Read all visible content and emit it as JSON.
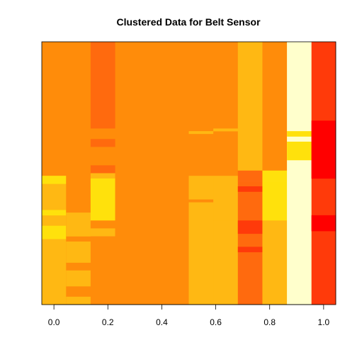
{
  "chart_data": {
    "type": "heatmap",
    "title": "Clustered Data for Belt Sensor",
    "xlabel": "",
    "ylabel": "",
    "xlim": [
      -0.045,
      1.045
    ],
    "ylim": [
      0,
      1
    ],
    "x_ticks": [
      0.0,
      0.2,
      0.4,
      0.6,
      0.8,
      1.0
    ],
    "x_tick_labels": [
      "0.0",
      "0.2",
      "0.4",
      "0.6",
      "0.8",
      "1.0"
    ],
    "y_axis_visible": false,
    "grid": false,
    "legend": "none",
    "palette": [
      "#FF0000",
      "#FF3A0A",
      "#FF6A0E",
      "#FF8C0A",
      "#FFB813",
      "#FFE10C",
      "#FFFFCC"
    ],
    "columns": [
      {
        "x_start": -0.045,
        "x_end": 0.045,
        "base_level": 3,
        "bands": [
          [
            0.0,
            0.51,
            3
          ],
          [
            0.51,
            1.0,
            4
          ],
          [
            0.51,
            0.54,
            5
          ],
          [
            0.7,
            0.75,
            5
          ],
          [
            0.64,
            0.66,
            5
          ]
        ]
      },
      {
        "x_start": 0.045,
        "x_end": 0.136,
        "base_level": 3,
        "bands": [
          [
            0.0,
            1.0,
            3
          ],
          [
            0.65,
            0.74,
            4
          ],
          [
            0.76,
            0.84,
            4
          ],
          [
            0.87,
            0.93,
            4
          ],
          [
            0.97,
            1.0,
            4
          ]
        ]
      },
      {
        "x_start": 0.136,
        "x_end": 0.227,
        "base_level": 2,
        "bands": [
          [
            0.0,
            0.33,
            2
          ],
          [
            0.33,
            0.37,
            3
          ],
          [
            0.37,
            0.4,
            2
          ],
          [
            0.4,
            0.47,
            3
          ],
          [
            0.47,
            0.5,
            2
          ],
          [
            0.5,
            0.52,
            4
          ],
          [
            0.52,
            0.68,
            5
          ],
          [
            0.68,
            0.71,
            3
          ],
          [
            0.71,
            0.74,
            4
          ],
          [
            0.74,
            1.0,
            3
          ]
        ]
      },
      {
        "x_start": 0.227,
        "x_end": 0.5,
        "base_level": 3,
        "bands": [
          [
            0.0,
            1.0,
            3
          ]
        ]
      },
      {
        "x_start": 0.5,
        "x_end": 0.591,
        "base_level": 3,
        "bands": [
          [
            0.0,
            0.51,
            3
          ],
          [
            0.51,
            1.0,
            4
          ],
          [
            0.6,
            0.61,
            3
          ],
          [
            0.34,
            0.35,
            4
          ]
        ]
      },
      {
        "x_start": 0.591,
        "x_end": 0.682,
        "base_level": 3,
        "bands": [
          [
            0.0,
            0.51,
            3
          ],
          [
            0.51,
            0.68,
            4
          ],
          [
            0.68,
            1.0,
            4
          ],
          [
            0.33,
            0.34,
            4
          ]
        ]
      },
      {
        "x_start": 0.682,
        "x_end": 0.773,
        "base_level": 4,
        "bands": [
          [
            0.0,
            0.49,
            4
          ],
          [
            0.49,
            0.53,
            2
          ],
          [
            0.53,
            1.0,
            2
          ],
          [
            0.55,
            0.57,
            1
          ],
          [
            0.68,
            0.73,
            1
          ],
          [
            0.78,
            0.8,
            1
          ]
        ]
      },
      {
        "x_start": 0.773,
        "x_end": 0.864,
        "base_level": 3,
        "bands": [
          [
            0.0,
            0.49,
            3
          ],
          [
            0.49,
            0.53,
            5
          ],
          [
            0.53,
            0.68,
            5
          ],
          [
            0.68,
            1.0,
            4
          ]
        ]
      },
      {
        "x_start": 0.864,
        "x_end": 0.955,
        "base_level": 6,
        "bands": [
          [
            0.0,
            1.0,
            6
          ],
          [
            0.34,
            0.36,
            5
          ],
          [
            0.38,
            0.45,
            5
          ]
        ]
      },
      {
        "x_start": 0.955,
        "x_end": 1.045,
        "base_level": 1,
        "bands": [
          [
            0.0,
            1.0,
            1
          ],
          [
            0.3,
            0.52,
            0
          ],
          [
            0.66,
            0.72,
            0
          ]
        ]
      }
    ]
  }
}
